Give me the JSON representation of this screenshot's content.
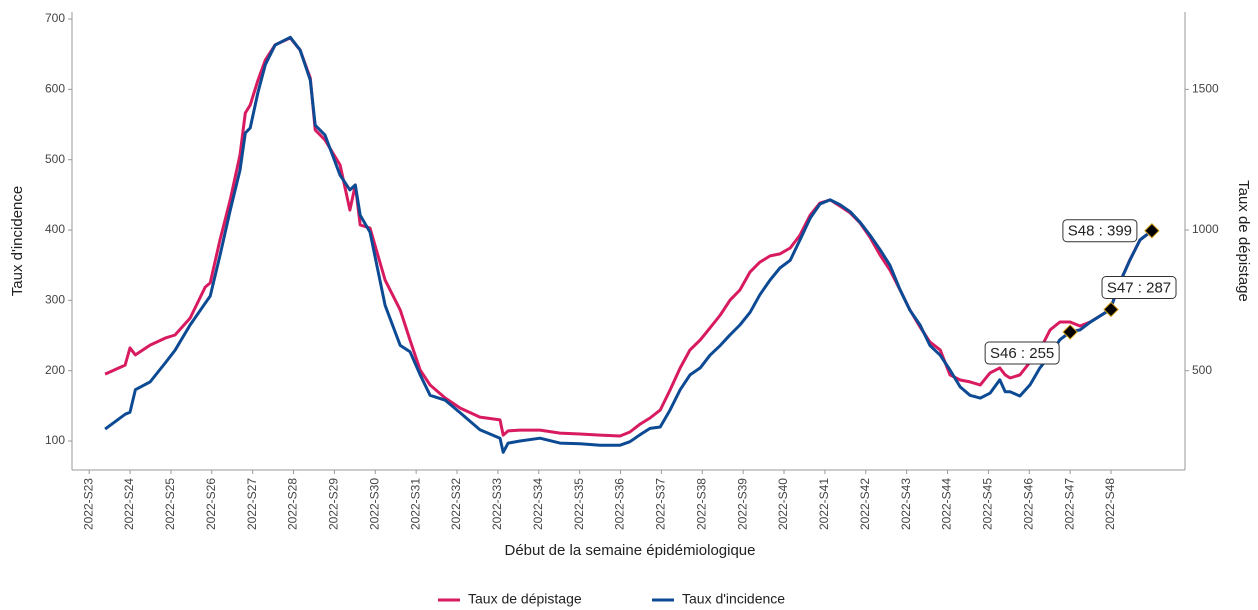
{
  "chart_data": {
    "type": "line",
    "xlabel": "Début de la semaine épidémiologique",
    "ylabel": "Taux d'incidence",
    "y2label": "Taux de dépistage",
    "xlim": [
      22.58,
      49.81
    ],
    "ylim": [
      58.8,
      710
    ],
    "y2lim": [
      147,
      1775
    ],
    "yticks": [
      100,
      200,
      300,
      400,
      500,
      600,
      700
    ],
    "y2ticks": [
      500,
      1000,
      1500
    ],
    "xticks": [
      {
        "value": 23,
        "label": "2022-S23"
      },
      {
        "value": 24,
        "label": "2022-S24"
      },
      {
        "value": 25,
        "label": "2022-S25"
      },
      {
        "value": 26,
        "label": "2022-S26"
      },
      {
        "value": 27,
        "label": "2022-S27"
      },
      {
        "value": 28,
        "label": "2022-S28"
      },
      {
        "value": 29,
        "label": "2022-S29"
      },
      {
        "value": 30,
        "label": "2022-S30"
      },
      {
        "value": 31,
        "label": "2022-S31"
      },
      {
        "value": 32,
        "label": "2022-S32"
      },
      {
        "value": 33,
        "label": "2022-S33"
      },
      {
        "value": 34,
        "label": "2022-S34"
      },
      {
        "value": 35,
        "label": "2022-S35"
      },
      {
        "value": 36,
        "label": "2022-S36"
      },
      {
        "value": 37,
        "label": "2022-S37"
      },
      {
        "value": 38,
        "label": "2022-S38"
      },
      {
        "value": 39,
        "label": "2022-S39"
      },
      {
        "value": 40,
        "label": "2022-S40"
      },
      {
        "value": 41,
        "label": "2022-S41"
      },
      {
        "value": 42,
        "label": "2022-S42"
      },
      {
        "value": 43,
        "label": "2022-S43"
      },
      {
        "value": 44,
        "label": "2022-S44"
      },
      {
        "value": 45,
        "label": "2022-S45"
      },
      {
        "value": 46,
        "label": "2022-S46"
      },
      {
        "value": 47,
        "label": "2022-S47"
      },
      {
        "value": 48,
        "label": "2022-S48"
      }
    ],
    "x": [
      23.39,
      23.88,
      24.0,
      24.13,
      24.49,
      24.86,
      25.1,
      25.47,
      25.84,
      25.96,
      26.2,
      26.45,
      26.69,
      26.82,
      26.94,
      27.13,
      27.31,
      27.55,
      27.92,
      28.16,
      28.41,
      28.53,
      28.77,
      29.14,
      29.38,
      29.51,
      29.63,
      29.87,
      30.24,
      30.61,
      30.85,
      31.1,
      31.34,
      31.71,
      32.08,
      32.56,
      33.05,
      33.13,
      33.25,
      33.54,
      34.03,
      34.52,
      35.01,
      35.5,
      35.99,
      36.23,
      36.48,
      36.72,
      36.97,
      37.21,
      37.46,
      37.7,
      37.95,
      38.19,
      38.44,
      38.68,
      38.92,
      39.17,
      39.41,
      39.66,
      39.9,
      40.15,
      40.39,
      40.64,
      40.88,
      41.13,
      41.37,
      41.62,
      41.86,
      42.1,
      42.35,
      42.59,
      42.84,
      43.08,
      43.33,
      43.57,
      43.82,
      44.06,
      44.31,
      44.55,
      44.8,
      45.04,
      45.28,
      45.41,
      45.53,
      45.77,
      46.02,
      46.26,
      46.51,
      46.75,
      47.0,
      47.24,
      47.49,
      47.98,
      48.22,
      48.46,
      48.71,
      49.0
    ],
    "series": [
      {
        "name": "Taux de dépistage",
        "color": "#d81b60",
        "axis": "y2",
        "values": [
          488,
          520,
          581,
          556,
          591,
          616,
          627,
          687,
          797,
          812,
          965,
          1107,
          1267,
          1416,
          1444,
          1533,
          1604,
          1658,
          1683,
          1640,
          1540,
          1356,
          1320,
          1231,
          1071,
          1160,
          1018,
          1007,
          822,
          716,
          609,
          502,
          449,
          403,
          367,
          335,
          325,
          271,
          286,
          289,
          289,
          278,
          275,
          271,
          268,
          282,
          310,
          332,
          360,
          431,
          510,
          574,
          609,
          652,
          698,
          751,
          787,
          851,
          886,
          908,
          915,
          936,
          982,
          1053,
          1096,
          1107,
          1085,
          1061,
          1025,
          975,
          911,
          858,
          787,
          716,
          655,
          602,
          574,
          485,
          467,
          460,
          449,
          492,
          510,
          485,
          474,
          485,
          531,
          574,
          645,
          673,
          673,
          659,
          673,
          717,
          815,
          893,
          965,
          997
        ]
      },
      {
        "name": "Taux d'incidence",
        "color": "#0d4a94",
        "values": [
          117,
          138,
          141,
          173,
          184,
          211,
          229,
          265,
          296,
          306,
          364,
          428,
          485,
          538,
          545,
          596,
          635,
          663,
          674,
          656,
          613,
          549,
          535,
          478,
          457,
          464,
          421,
          397,
          293,
          236,
          227,
          194,
          165,
          158,
          140,
          116,
          104,
          84,
          97,
          100,
          104,
          97,
          96,
          94,
          94,
          99,
          109,
          118,
          120,
          144,
          173,
          194,
          204,
          222,
          236,
          251,
          265,
          283,
          308,
          329,
          346,
          357,
          386,
          417,
          437,
          443,
          436,
          426,
          411,
          393,
          372,
          350,
          315,
          286,
          265,
          236,
          222,
          201,
          177,
          165,
          161,
          168,
          187,
          170,
          170,
          164,
          180,
          204,
          222,
          244,
          255,
          258,
          269,
          287,
          326,
          357,
          386,
          399
        ]
      }
    ],
    "annotations": [
      {
        "x": 47,
        "value": 255,
        "label": "S46 : 255"
      },
      {
        "x": 48,
        "value": 287,
        "label": "S47 : 287"
      },
      {
        "x": 49,
        "value": 399,
        "label": "S48 : 399"
      }
    ]
  }
}
